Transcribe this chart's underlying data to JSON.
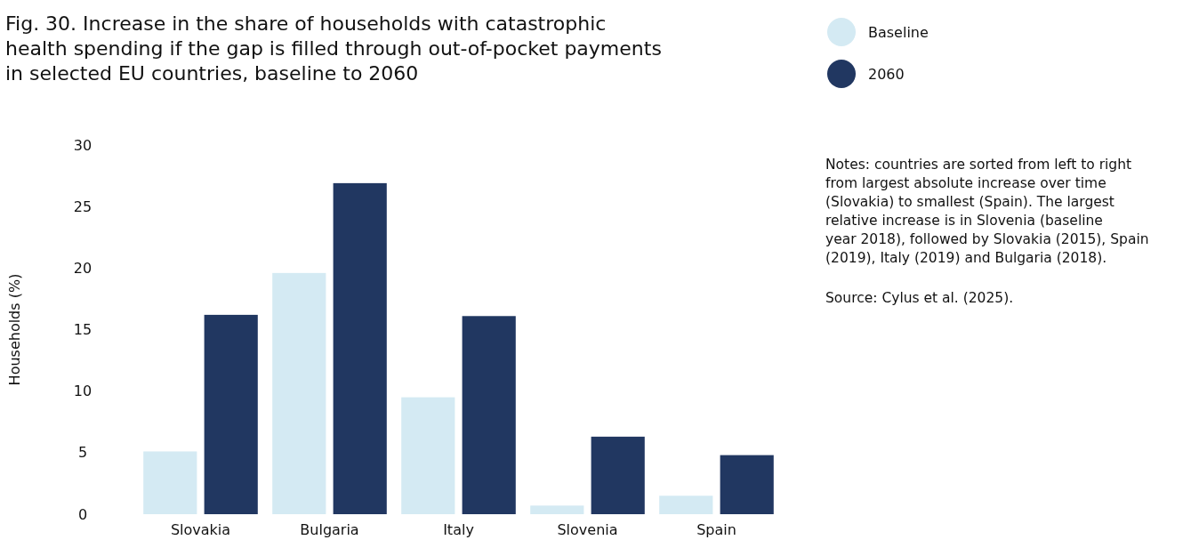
{
  "chart_data": {
    "type": "bar",
    "title": "Fig. 30. Increase in the share of households with catastrophic health spending if the gap is filled through out-of-pocket payments in selected EU countries, baseline to 2060",
    "ylabel": "Households (%)",
    "categories": [
      "Slovakia",
      "Bulgaria",
      "Italy",
      "Slovenia",
      "Spain"
    ],
    "series": [
      {
        "name": "Baseline",
        "color": "#d4eaf3",
        "values": [
          5.1,
          19.6,
          9.5,
          0.7,
          1.5
        ]
      },
      {
        "name": "2060",
        "color": "#213761",
        "values": [
          16.2,
          26.9,
          16.1,
          6.3,
          4.8
        ]
      }
    ],
    "ylim": [
      0,
      30
    ],
    "yticks": [
      0,
      5,
      10,
      15,
      20,
      25,
      30
    ],
    "grid": false,
    "legend": "top right",
    "annotations": [
      "Notes: countries are sorted from left to right from largest absolute increase over time (Slovakia) to smallest (Spain). The largest relative increase is in Slovenia (baseline year 2018), followed by Slovakia (2015), Spain (2019), Italy (2019) and Bulgaria (2018).",
      "Source: Cylus et al. (2025)."
    ]
  }
}
